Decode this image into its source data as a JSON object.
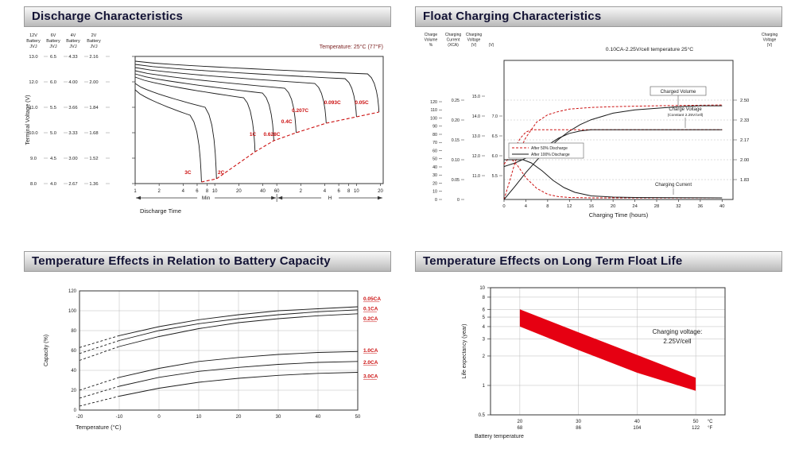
{
  "page": {
    "background": "#ffffff"
  },
  "colors": {
    "accent_red": "#cc1111",
    "line_black": "#1a1a1a",
    "band_red": "#e60012",
    "note_red": "#7b2020",
    "grid_gray": "#bbbbbb",
    "header_text": "#131335"
  },
  "panels": [
    {
      "title": "Discharge Characteristics"
    },
    {
      "title": "Float Charging Characteristics"
    },
    {
      "title": "Temperature Effects in Relation to Battery Capacity"
    },
    {
      "title": "Temperature Effects on Long Term Float Life"
    }
  ],
  "chart_data": [
    {
      "id": "discharge",
      "type": "line",
      "title": "Discharge Characteristics",
      "note": "Temperature: 25°C (77°F)",
      "ylabel": "Terminal Voltage (V)",
      "xlabel": "Discharge Time",
      "battery_columns": [
        {
          "header": [
            "12V",
            "Battery",
            "JVJ"
          ],
          "ticks": [
            "13.0",
            "12.0",
            "11.0",
            "10.0",
            "9.0",
            "8.0"
          ]
        },
        {
          "header": [
            "6V",
            "Battery",
            "JVJ"
          ],
          "ticks": [
            "6.5",
            "6.0",
            "5.5",
            "5.0",
            "4.5",
            "4.0"
          ]
        },
        {
          "header": [
            "4V",
            "Battery",
            "JVJ"
          ],
          "ticks": [
            "4.33",
            "4.00",
            "3.66",
            "3.33",
            "3.00",
            "2.67"
          ]
        },
        {
          "header": [
            "2V",
            "Battery",
            "JVJ"
          ],
          "ticks": [
            "2.16",
            "2.00",
            "1.84",
            "1.68",
            "1.52",
            "1.36"
          ]
        }
      ],
      "y_cell_range": [
        1.36,
        2.16
      ],
      "x_range_minutes": [
        1,
        1300
      ],
      "x_ticks_minutes": [
        1,
        2,
        4,
        6,
        8,
        10,
        20,
        40,
        60
      ],
      "x_ticks_hours": [
        2,
        4,
        6,
        8,
        10,
        20
      ],
      "x_section_labels": [
        "Min",
        "H"
      ],
      "curves": [
        {
          "label": "3C",
          "start": 1.95,
          "plateau": 1.79,
          "end_min": 6.8,
          "cutoff": 1.37,
          "label_at": [
            4.6,
            1.42
          ]
        },
        {
          "label": "2C",
          "start": 1.99,
          "plateau": 1.84,
          "end_min": 10.5,
          "cutoff": 1.39,
          "label_at": [
            12,
            1.42
          ]
        },
        {
          "label": "1C",
          "start": 2.03,
          "plateau": 1.9,
          "end_min": 32,
          "cutoff": 1.56,
          "label_at": [
            30,
            1.66
          ]
        },
        {
          "label": "0.628C",
          "start": 2.05,
          "plateau": 1.93,
          "end_min": 55,
          "cutoff": 1.63,
          "label_at": [
            52,
            1.66
          ]
        },
        {
          "label": "0.4C",
          "start": 2.07,
          "plateau": 1.96,
          "end_min": 105,
          "cutoff": 1.68,
          "label_at": [
            80,
            1.74
          ]
        },
        {
          "label": "0.207C",
          "start": 2.09,
          "plateau": 1.99,
          "end_min": 250,
          "cutoff": 1.74,
          "label_at": [
            118,
            1.81
          ]
        },
        {
          "label": "0.093C",
          "start": 2.11,
          "plateau": 2.02,
          "end_min": 600,
          "cutoff": 1.78,
          "label_at": [
            300,
            1.86
          ]
        },
        {
          "label": "0.05C",
          "start": 2.13,
          "plateau": 2.05,
          "end_min": 1150,
          "cutoff": 1.81,
          "label_at": [
            700,
            1.86
          ]
        }
      ],
      "cutoff_locus": [
        [
          6.8,
          1.37
        ],
        [
          10.5,
          1.39
        ],
        [
          32,
          1.56
        ],
        [
          55,
          1.63
        ],
        [
          105,
          1.68
        ],
        [
          250,
          1.74
        ],
        [
          600,
          1.78
        ],
        [
          1150,
          1.81
        ]
      ]
    },
    {
      "id": "float-charging",
      "type": "line",
      "title": "Float Charging Characteristics",
      "note": "0.10CA-2.25V/cell  temperature 25°C",
      "xlabel": "Charging Time (hours)",
      "x_range": [
        0,
        42
      ],
      "x_ticks": [
        0,
        4,
        8,
        12,
        16,
        20,
        24,
        28,
        32,
        36,
        40
      ],
      "left_axes": [
        {
          "header": [
            "Charge",
            "Volume",
            "%"
          ],
          "ticks": [
            "120",
            "110",
            "100",
            "90",
            "80",
            "70",
            "60",
            "50",
            "40",
            "30",
            "20",
            "10",
            "0"
          ]
        },
        {
          "header": [
            "Charging",
            "Current",
            "(XCA)"
          ],
          "ticks": [
            "0.25",
            "0.20",
            "0.15",
            "0.10",
            "0.05",
            "0"
          ]
        },
        {
          "header": [
            "Charging",
            "Voltage",
            "(V)"
          ],
          "ticks": [
            "15.0",
            "14.0",
            "13.0",
            "12.0",
            "11.0"
          ]
        },
        {
          "header": [
            "(V)"
          ],
          "ticks": [
            "7.0",
            "6.5",
            "6.0",
            "5.5"
          ]
        }
      ],
      "right_axis": {
        "header": [
          "Charging",
          "Voltage",
          "(V)"
        ],
        "ticks": [
          "2.50",
          "2.33",
          "2.17",
          "2.00",
          "1.83"
        ]
      },
      "legend": [
        {
          "label": "After  50% Discharge",
          "style": "dashed",
          "color": "#cc1111"
        },
        {
          "label": "After 100% Discharge",
          "style": "solid",
          "color": "#1a1a1a"
        }
      ],
      "series_labels": {
        "volume": "Charged Volume",
        "voltage": "Charge Voltage",
        "voltage_sub": "(Constant 2.25V/cell)",
        "current": "Charging Current"
      },
      "series": {
        "volume_50": [
          [
            0,
            0
          ],
          [
            1,
            22
          ],
          [
            2,
            45
          ],
          [
            3,
            62
          ],
          [
            4,
            76
          ],
          [
            6,
            95
          ],
          [
            8,
            104
          ],
          [
            10,
            108
          ],
          [
            12,
            111
          ],
          [
            16,
            113
          ],
          [
            20,
            114
          ],
          [
            28,
            115
          ],
          [
            40,
            116
          ]
        ],
        "volume_100": [
          [
            0,
            0
          ],
          [
            2,
            16
          ],
          [
            4,
            33
          ],
          [
            6,
            48
          ],
          [
            8,
            62
          ],
          [
            10,
            74
          ],
          [
            12,
            84
          ],
          [
            14,
            92
          ],
          [
            16,
            98
          ],
          [
            20,
            106
          ],
          [
            24,
            110
          ],
          [
            28,
            112
          ],
          [
            32,
            114
          ],
          [
            36,
            115
          ],
          [
            40,
            115
          ]
        ],
        "voltage_50": [
          [
            0,
            1.96
          ],
          [
            1,
            2.02
          ],
          [
            2,
            2.1
          ],
          [
            3,
            2.18
          ],
          [
            4,
            2.23
          ],
          [
            5,
            2.25
          ],
          [
            8,
            2.25
          ],
          [
            40,
            2.25
          ]
        ],
        "voltage_100": [
          [
            0,
            1.94
          ],
          [
            2,
            1.97
          ],
          [
            4,
            2.01
          ],
          [
            6,
            2.06
          ],
          [
            8,
            2.12
          ],
          [
            10,
            2.18
          ],
          [
            12,
            2.22
          ],
          [
            14,
            2.24
          ],
          [
            16,
            2.25
          ],
          [
            40,
            2.25
          ]
        ],
        "current_50": [
          [
            0,
            0.1
          ],
          [
            1.5,
            0.1
          ],
          [
            2.5,
            0.085
          ],
          [
            4,
            0.055
          ],
          [
            6,
            0.028
          ],
          [
            8,
            0.013
          ],
          [
            10,
            0.007
          ],
          [
            12,
            0.005
          ],
          [
            16,
            0.004
          ],
          [
            40,
            0.004
          ]
        ],
        "current_100": [
          [
            0,
            0.1
          ],
          [
            3.5,
            0.1
          ],
          [
            5,
            0.092
          ],
          [
            7,
            0.072
          ],
          [
            9,
            0.048
          ],
          [
            11,
            0.03
          ],
          [
            13,
            0.018
          ],
          [
            16,
            0.009
          ],
          [
            20,
            0.006
          ],
          [
            24,
            0.005
          ],
          [
            40,
            0.004
          ]
        ]
      }
    },
    {
      "id": "temp-capacity",
      "type": "line",
      "title": "Temperature Effects in Relation to Battery Capacity",
      "xlabel": "Temperature (°C)",
      "ylabel": "Capacity (%)",
      "x_ticks": [
        -20,
        -10,
        0,
        10,
        20,
        30,
        40,
        50
      ],
      "y_ticks": [
        0,
        20,
        40,
        60,
        80,
        100,
        120
      ],
      "dashed_below_c": -10,
      "series": [
        {
          "label": "0.05CA",
          "label_value": 112,
          "points": [
            [
              -20,
              63
            ],
            [
              -10,
              75
            ],
            [
              0,
              84
            ],
            [
              10,
              91
            ],
            [
              20,
              96
            ],
            [
              30,
              100
            ],
            [
              40,
              102
            ],
            [
              50,
              104
            ]
          ]
        },
        {
          "label": "0.1CA",
          "label_value": 102,
          "points": [
            [
              -20,
              57
            ],
            [
              -10,
              70
            ],
            [
              0,
              80
            ],
            [
              10,
              87
            ],
            [
              20,
              92
            ],
            [
              30,
              96
            ],
            [
              40,
              99
            ],
            [
              50,
              101
            ]
          ]
        },
        {
          "label": "0.2CA",
          "label_value": 92,
          "points": [
            [
              -20,
              50
            ],
            [
              -10,
              64
            ],
            [
              0,
              74
            ],
            [
              10,
              82
            ],
            [
              20,
              88
            ],
            [
              30,
              92
            ],
            [
              40,
              95
            ],
            [
              50,
              97
            ]
          ]
        },
        {
          "label": "1.0CA",
          "label_value": 60,
          "points": [
            [
              -20,
              20
            ],
            [
              -10,
              33
            ],
            [
              0,
              42
            ],
            [
              10,
              49
            ],
            [
              20,
              53
            ],
            [
              30,
              56
            ],
            [
              40,
              58
            ],
            [
              50,
              59
            ]
          ]
        },
        {
          "label": "2.0CA",
          "label_value": 48,
          "points": [
            [
              -20,
              12
            ],
            [
              -10,
              24
            ],
            [
              0,
              33
            ],
            [
              10,
              39
            ],
            [
              20,
              43
            ],
            [
              30,
              46
            ],
            [
              40,
              48
            ],
            [
              50,
              49
            ]
          ]
        },
        {
          "label": "3.0CA",
          "label_value": 34,
          "points": [
            [
              -20,
              4
            ],
            [
              -10,
              14
            ],
            [
              0,
              22
            ],
            [
              10,
              28
            ],
            [
              20,
              32
            ],
            [
              30,
              35
            ],
            [
              40,
              37
            ],
            [
              50,
              38
            ]
          ]
        }
      ]
    },
    {
      "id": "float-life",
      "type": "area",
      "title": "Temperature Effects on Long Term Float Life",
      "xlabel": "Battery temperature",
      "ylabel": "Life expectancy (year)",
      "annotation": [
        "Charging voltage:",
        "2.25V/cell"
      ],
      "y_scale": "log",
      "y_ticks": [
        10,
        8,
        6,
        5,
        4,
        3,
        2,
        1,
        0.5
      ],
      "x_range": [
        15,
        55
      ],
      "x_ticks": [
        {
          "c": 20,
          "f": 68
        },
        {
          "c": 30,
          "f": 86
        },
        {
          "c": 40,
          "f": 104
        },
        {
          "c": 50,
          "f": 122
        }
      ],
      "x_unit_c": "°C",
      "x_unit_f": "°F",
      "band_upper": [
        [
          20,
          6.0
        ],
        [
          30,
          3.5
        ],
        [
          40,
          2.05
        ],
        [
          50,
          1.2
        ]
      ],
      "band_lower": [
        [
          20,
          4.0
        ],
        [
          30,
          2.3
        ],
        [
          40,
          1.35
        ],
        [
          50,
          0.88
        ]
      ]
    }
  ]
}
